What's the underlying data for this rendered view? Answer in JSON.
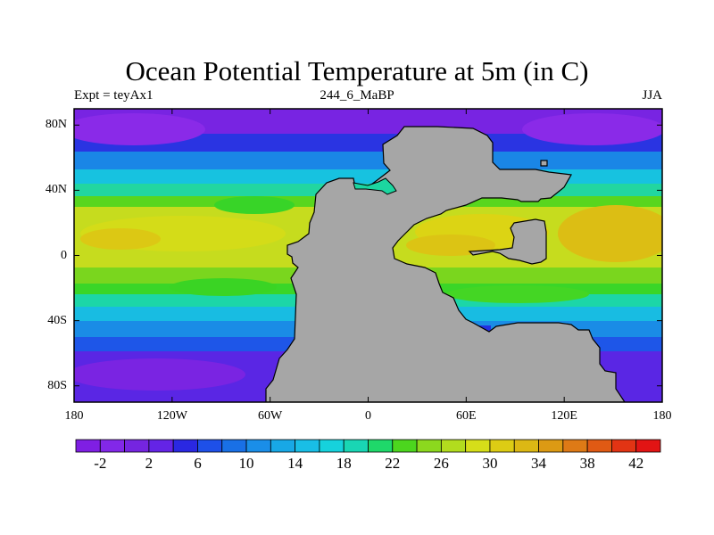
{
  "header": {
    "title": "Ocean Potential Temperature at 5m (in C)",
    "left_label": "Expt = teyAx1",
    "center_label": "244_6_MaBP",
    "right_label": "JJA"
  },
  "axes": {
    "lat_ticks": [
      {
        "value": 80,
        "label": "80N"
      },
      {
        "value": 40,
        "label": "40N"
      },
      {
        "value": 0,
        "label": "0"
      },
      {
        "value": -40,
        "label": "40S"
      },
      {
        "value": -80,
        "label": "80S"
      }
    ],
    "lon_ticks": [
      {
        "value": -180,
        "label": "180"
      },
      {
        "value": -120,
        "label": "120W"
      },
      {
        "value": -60,
        "label": "60W"
      },
      {
        "value": 0,
        "label": "0"
      },
      {
        "value": 60,
        "label": "60E"
      },
      {
        "value": 120,
        "label": "120E"
      },
      {
        "value": 180,
        "label": "180"
      }
    ],
    "lon_range": [
      -180,
      180
    ],
    "lat_range": [
      -90,
      90
    ]
  },
  "colorbar": {
    "colors": [
      "#7f1fe3",
      "#8228e8",
      "#7525e0",
      "#6424e6",
      "#2a28e2",
      "#1e50e8",
      "#1970e6",
      "#1a8ee8",
      "#18a8e6",
      "#19bee6",
      "#16d2dc",
      "#19d6b4",
      "#1fd86a",
      "#4cd61e",
      "#8cd81e",
      "#b2dc1e",
      "#d6de19",
      "#ddcc14",
      "#dcb814",
      "#dc9a14",
      "#de7a16",
      "#e05a14",
      "#e23414",
      "#e21414"
    ],
    "labels": [
      {
        "value": -2,
        "label": "-2"
      },
      {
        "value": 2,
        "label": "2"
      },
      {
        "value": 6,
        "label": "6"
      },
      {
        "value": 10,
        "label": "10"
      },
      {
        "value": 14,
        "label": "14"
      },
      {
        "value": 18,
        "label": "18"
      },
      {
        "value": 22,
        "label": "22"
      },
      {
        "value": 26,
        "label": "26"
      },
      {
        "value": 30,
        "label": "30"
      },
      {
        "value": 34,
        "label": "34"
      },
      {
        "value": 38,
        "label": "38"
      },
      {
        "value": 42,
        "label": "42"
      }
    ],
    "land_color": "#a6a6a6"
  }
}
